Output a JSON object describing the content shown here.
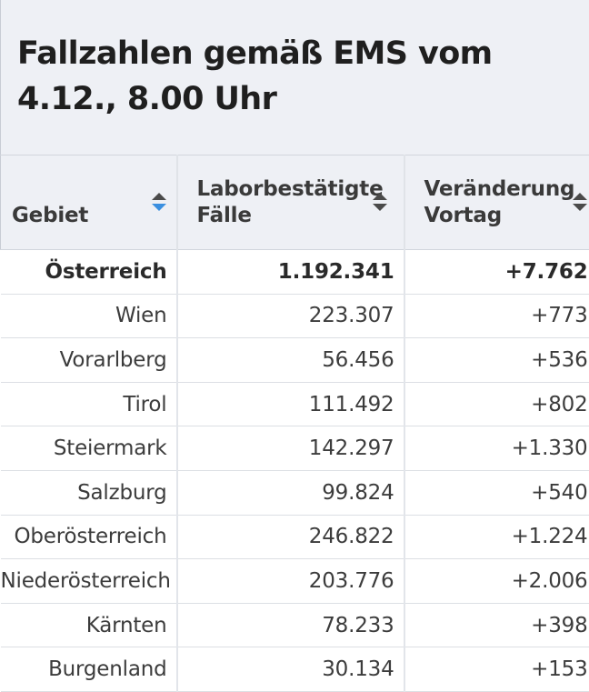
{
  "title": "Fallzahlen gemäß EMS vom 4.12., 8.00 Uhr",
  "columns": [
    {
      "label_line1": "Gebiet",
      "label_line2": ""
    },
    {
      "label_line1": "Laborbestätigte",
      "label_line2": "Fälle"
    },
    {
      "label_line1": "Veränderung",
      "label_line2": "Vortag"
    }
  ],
  "sort": {
    "active_column": "Gebiet",
    "direction": "descending",
    "active_color": "#3a8fe0",
    "inactive_color": "#4a4a4a"
  },
  "rows": [
    {
      "gebiet": "Österreich",
      "faelle": "1.192.341",
      "veraenderung": "+7.762",
      "bold": true
    },
    {
      "gebiet": "Wien",
      "faelle": "223.307",
      "veraenderung": "+773",
      "bold": false
    },
    {
      "gebiet": "Vorarlberg",
      "faelle": "56.456",
      "veraenderung": "+536",
      "bold": false
    },
    {
      "gebiet": "Tirol",
      "faelle": "111.492",
      "veraenderung": "+802",
      "bold": false
    },
    {
      "gebiet": "Steiermark",
      "faelle": "142.297",
      "veraenderung": "+1.330",
      "bold": false
    },
    {
      "gebiet": "Salzburg",
      "faelle": "99.824",
      "veraenderung": "+540",
      "bold": false
    },
    {
      "gebiet": "Oberösterreich",
      "faelle": "246.822",
      "veraenderung": "+1.224",
      "bold": false
    },
    {
      "gebiet": "Niederösterreich",
      "faelle": "203.776",
      "veraenderung": "+2.006",
      "bold": false
    },
    {
      "gebiet": "Kärnten",
      "faelle": "78.233",
      "veraenderung": "+398",
      "bold": false
    },
    {
      "gebiet": "Burgenland",
      "faelle": "30.134",
      "veraenderung": "+153",
      "bold": false
    }
  ]
}
